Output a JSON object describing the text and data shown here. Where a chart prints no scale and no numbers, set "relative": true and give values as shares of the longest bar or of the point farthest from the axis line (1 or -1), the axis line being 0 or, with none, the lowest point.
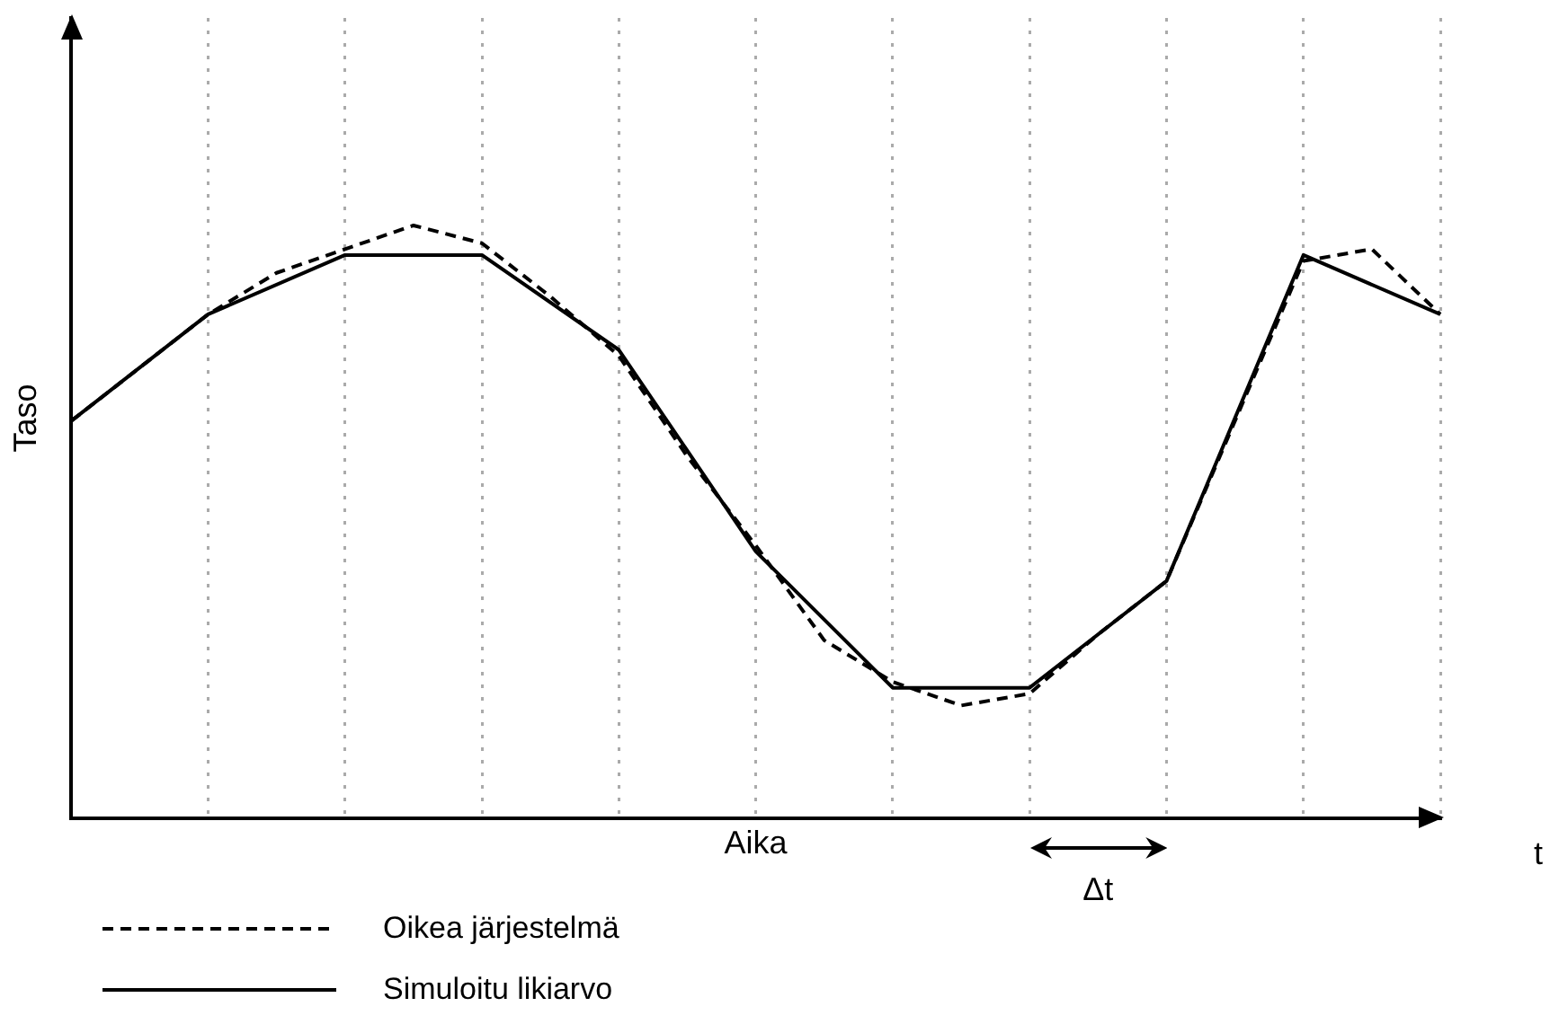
{
  "chart_data": {
    "type": "line",
    "relative": true,
    "xlabel": "Aika",
    "ylabel": "Taso",
    "annotations": [
      "Δt",
      "t"
    ],
    "categories": [
      null,
      null,
      null,
      null,
      null,
      null,
      null,
      null,
      null,
      null,
      null,
      null,
      null,
      null,
      null,
      null,
      null,
      null,
      null,
      null,
      null
    ],
    "grid": "x",
    "tick_labels": false,
    "legend": "bottom left",
    "marker": "none",
    "series": [
      {
        "name": "Oikea järjestelmä",
        "color": "#000000",
        "line_style": "dashed",
        "values": [
          0.67,
          0.76,
          0.85,
          0.92,
          0.96,
          1,
          0.97,
          0.88,
          0.78,
          0.61,
          0.46,
          0.3,
          0.23,
          0.19,
          0.21,
          0.31,
          0.4,
          0.67,
          0.94,
          0.96,
          0.85
        ]
      },
      {
        "name": "Simuloitu likiarvo",
        "color": "#000000",
        "line_style": "solid",
        "values": [
          0.67,
          null,
          0.85,
          null,
          0.95,
          null,
          0.95,
          null,
          0.79,
          null,
          0.45,
          null,
          0.22,
          null,
          0.22,
          null,
          0.4,
          null,
          0.95,
          null,
          0.85
        ]
      }
    ]
  }
}
